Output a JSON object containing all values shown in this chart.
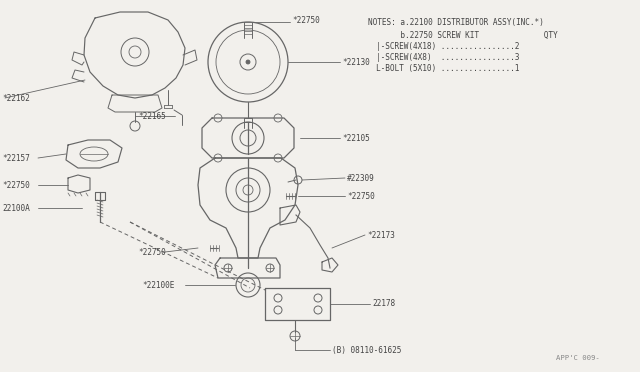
{
  "bg_color": "#f2f0ec",
  "line_color": "#666666",
  "text_color": "#444444",
  "notes": [
    "NOTES: a.22100 DISTRIBUTOR ASSY(INC.*)",
    "       b.22750 SCREW KIT              QTY",
    "           |-SCREW(4X18) ................2",
    "           |-SCREW(4X8)  ...............3",
    "           L-BOLT (5X10) ...............1"
  ],
  "part_code": "APP'C 009-",
  "lbl_22750_top": "*22750",
  "lbl_22130": "*22130",
  "lbl_22162": "*22162",
  "lbl_22165": "*22165",
  "lbl_22157": "*22157",
  "lbl_22750_left": "*22750",
  "lbl_22105": "*22105",
  "lbl_22309": "#22309",
  "lbl_22750_mid": "*22750",
  "lbl_22173": "*22173",
  "lbl_22750_bot": "*22750",
  "lbl_22100A": "22100A",
  "lbl_22100E": "*22100E",
  "lbl_22178": "22178",
  "lbl_08110": "(B) 08110-61625"
}
